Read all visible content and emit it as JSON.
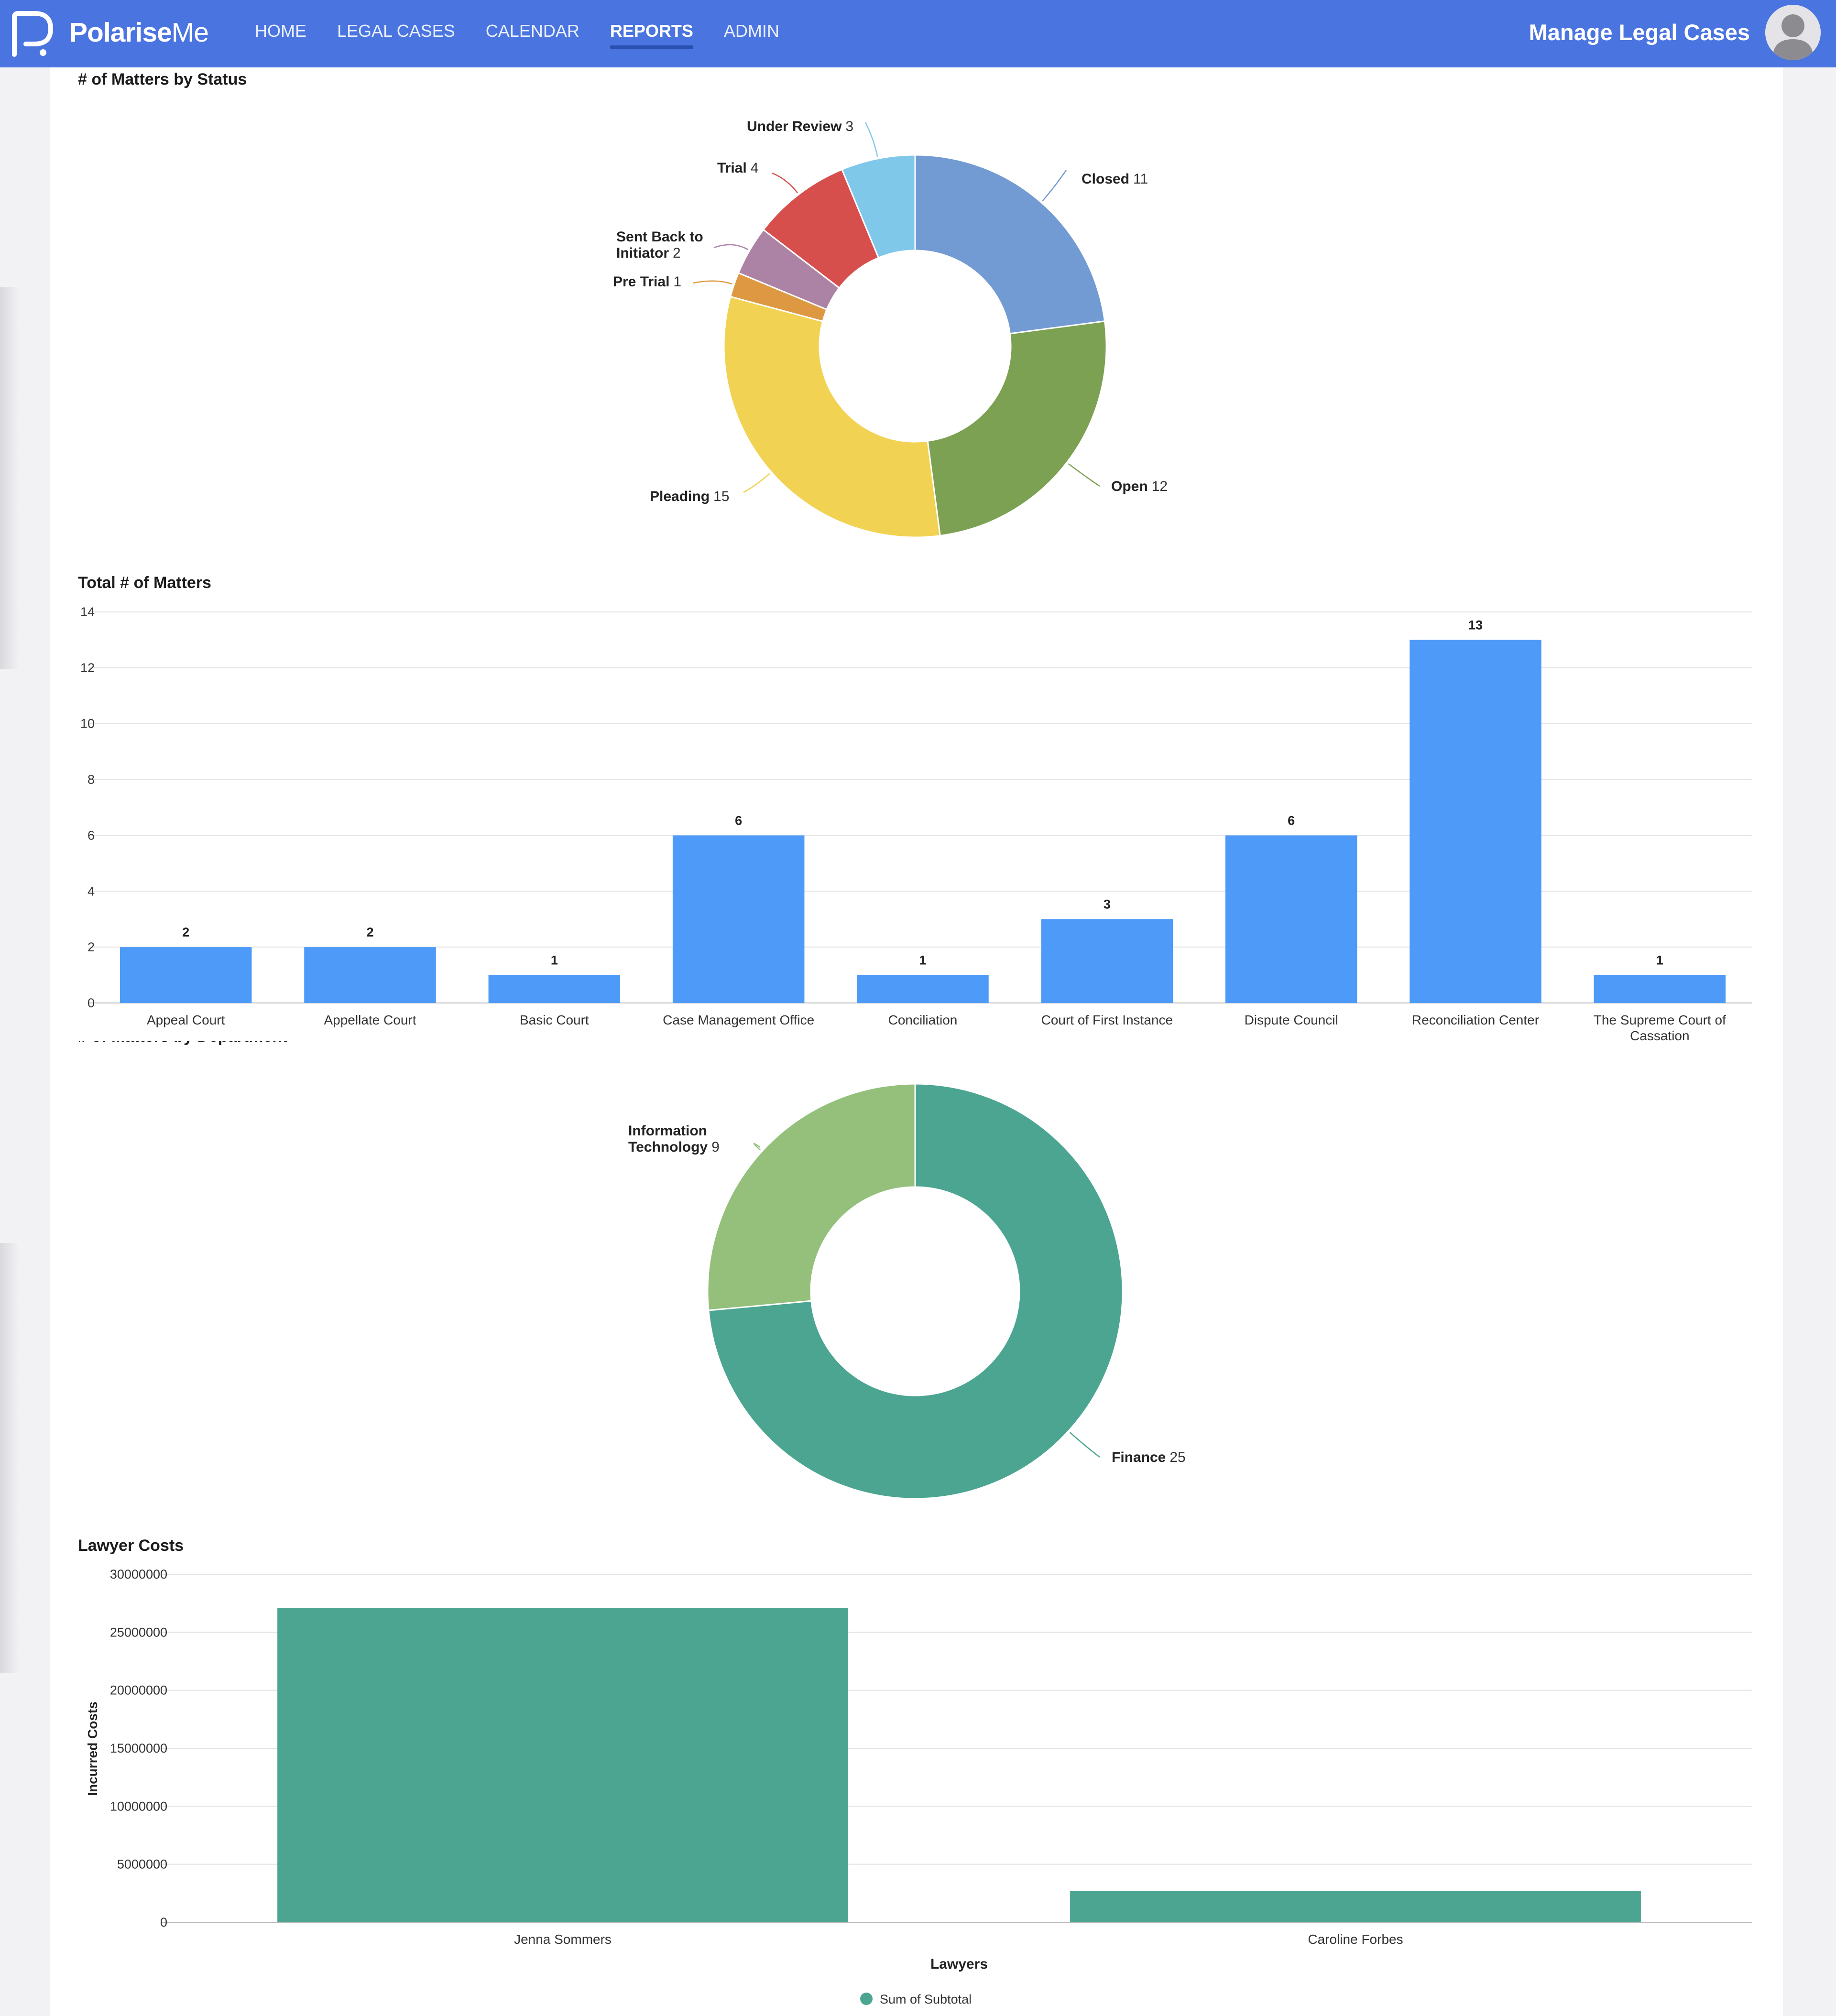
{
  "header": {
    "brand_bold": "Polarise",
    "brand_light": "Me",
    "nav": [
      "HOME",
      "LEGAL CASES",
      "CALENDAR",
      "REPORTS",
      "ADMIN"
    ],
    "active_nav": "REPORTS",
    "page_title": "Manage Legal Cases",
    "colors": {
      "bar": "#4a74e0",
      "underline": "#2b4fb3"
    }
  },
  "chart_data": [
    {
      "type": "pie",
      "title": "# of Matters by Status",
      "donut": true,
      "slices": [
        {
          "label": "Closed",
          "value": 11,
          "color": "#729bd3"
        },
        {
          "label": "Open",
          "value": 12,
          "color": "#7ca153"
        },
        {
          "label": "Pleading",
          "value": 15,
          "color": "#f2d253"
        },
        {
          "label": "Pre Trial",
          "value": 1,
          "color": "#dd9841"
        },
        {
          "label": "Sent Back to Initiator",
          "value": 2,
          "color": "#ad83a5"
        },
        {
          "label": "Trial",
          "value": 4,
          "color": "#d74f4c"
        },
        {
          "label": "Under Review",
          "value": 3,
          "color": "#80c8ea"
        }
      ]
    },
    {
      "type": "bar",
      "title": "Total # of Matters",
      "categories": [
        "Appeal Court",
        "Appellate Court",
        "Basic Court",
        "Case Management Office",
        "Conciliation",
        "Court of First Instance",
        "Dispute Council",
        "Reconciliation Center",
        "The Supreme Court of Cassation"
      ],
      "values": [
        2,
        2,
        1,
        6,
        1,
        3,
        6,
        13,
        1
      ],
      "ylim": [
        0,
        14
      ],
      "yticks": [
        0,
        2,
        4,
        6,
        8,
        10,
        12,
        14
      ],
      "color": "#4d9af8",
      "grid": true
    },
    {
      "type": "pie",
      "title": "# of Matters by Department",
      "donut": true,
      "slices": [
        {
          "label": "Finance",
          "value": 25,
          "color": "#4ca591"
        },
        {
          "label": "Information Technology",
          "value": 9,
          "color": "#94c07b"
        }
      ]
    },
    {
      "type": "bar",
      "title": "Lawyer Costs",
      "categories": [
        "Jenna Sommers",
        "Caroline Forbes"
      ],
      "series": [
        {
          "name": "Sum of Subtotal",
          "values": [
            27100000,
            2700000
          ]
        }
      ],
      "xlabel": "Lawyers",
      "ylabel": "Incurred Costs",
      "ylim": [
        0,
        30000000
      ],
      "yticks": [
        0,
        5000000,
        10000000,
        15000000,
        20000000,
        25000000,
        30000000
      ],
      "color": "#4ca591",
      "grid": true,
      "legend": "bottom"
    }
  ]
}
